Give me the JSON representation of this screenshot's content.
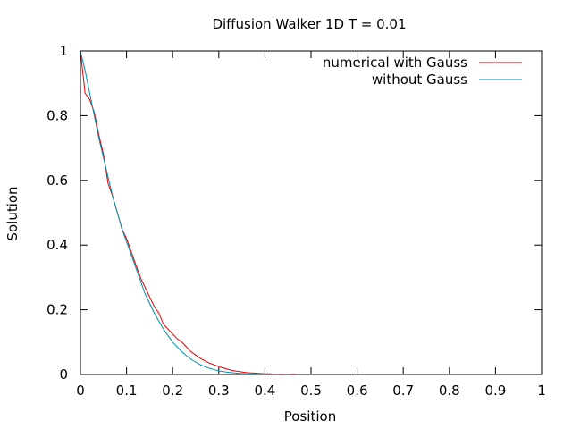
{
  "chart_data": {
    "type": "line",
    "title": "Diffusion Walker 1D T = 0.01",
    "xlabel": "Position",
    "ylabel": "Solution",
    "xlim": [
      0,
      1
    ],
    "ylim": [
      0,
      1
    ],
    "xticks": [
      "0",
      "0.1",
      "0.2",
      "0.3",
      "0.4",
      "0.5",
      "0.6",
      "0.7",
      "0.8",
      "0.9",
      "1"
    ],
    "yticks": [
      "0",
      "0.2",
      "0.4",
      "0.6",
      "0.8",
      "1"
    ],
    "grid": false,
    "legend": "top-right",
    "series": [
      {
        "name": "numerical with Gauss",
        "color": "#e00000",
        "x": [
          0,
          0.01,
          0.02,
          0.03,
          0.04,
          0.05,
          0.06,
          0.07,
          0.08,
          0.09,
          0.1,
          0.11,
          0.12,
          0.13,
          0.14,
          0.15,
          0.16,
          0.17,
          0.18,
          0.19,
          0.2,
          0.21,
          0.22,
          0.23,
          0.24,
          0.25,
          0.26,
          0.27,
          0.28,
          0.29,
          0.3,
          0.31,
          0.32,
          0.33,
          0.34,
          0.35,
          0.36,
          0.37,
          0.38,
          0.39,
          0.4,
          0.41,
          0.42,
          0.43,
          0.44,
          0.45,
          0.46,
          0.47
        ],
        "y": [
          1.0,
          0.87,
          0.85,
          0.81,
          0.74,
          0.68,
          0.59,
          0.55,
          0.5,
          0.45,
          0.42,
          0.38,
          0.34,
          0.3,
          0.27,
          0.24,
          0.21,
          0.19,
          0.155,
          0.14,
          0.125,
          0.11,
          0.1,
          0.085,
          0.07,
          0.06,
          0.05,
          0.042,
          0.035,
          0.03,
          0.024,
          0.02,
          0.016,
          0.012,
          0.01,
          0.008,
          0.006,
          0.005,
          0.004,
          0.003,
          0.002,
          0.002,
          0.001,
          0.001,
          0.001,
          0.0,
          0.001,
          0.0
        ]
      },
      {
        "name": "without Gauss",
        "color": "#008fb0",
        "x": [
          0,
          0.01,
          0.02,
          0.03,
          0.04,
          0.05,
          0.06,
          0.07,
          0.08,
          0.09,
          0.1,
          0.11,
          0.12,
          0.13,
          0.14,
          0.15,
          0.16,
          0.17,
          0.18,
          0.19,
          0.2,
          0.21,
          0.22,
          0.23,
          0.24,
          0.25,
          0.26,
          0.27,
          0.28,
          0.29,
          0.3,
          0.32,
          0.34,
          0.36,
          0.38,
          0.4,
          0.42,
          0.44,
          0.46
        ],
        "y": [
          1.0,
          0.94,
          0.87,
          0.8,
          0.73,
          0.67,
          0.61,
          0.55,
          0.5,
          0.45,
          0.41,
          0.37,
          0.33,
          0.29,
          0.25,
          0.22,
          0.19,
          0.165,
          0.14,
          0.12,
          0.1,
          0.085,
          0.07,
          0.058,
          0.047,
          0.038,
          0.03,
          0.024,
          0.019,
          0.015,
          0.011,
          0.007,
          0.004,
          0.002,
          0.001,
          0.0008,
          0.0004,
          0.0002,
          0.0
        ]
      }
    ]
  }
}
